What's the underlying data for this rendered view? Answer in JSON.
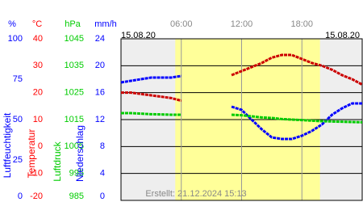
{
  "chart_data": {
    "type": "line",
    "date_left": "15.08.20",
    "date_right": "15.08.20",
    "footer": "Erstellt: 21.12.2024 15:13",
    "xlim": [
      0,
      24
    ],
    "xticks": [
      {
        "value": 6,
        "label": "06:00"
      },
      {
        "value": 12,
        "label": "12:00"
      },
      {
        "value": 18,
        "label": "18:00"
      }
    ],
    "daylight": [
      5.4,
      19.8
    ],
    "axes": [
      {
        "unit": "%",
        "title": "Luftfeuchtigkeit",
        "color": "#0000ff",
        "lim": [
          0,
          100
        ],
        "ticks": [
          0,
          25,
          50,
          75,
          100
        ]
      },
      {
        "unit": "°C",
        "title": "Temperatur",
        "color": "#ff0000",
        "lim": [
          -20,
          40
        ],
        "ticks": [
          -20,
          -10,
          0,
          10,
          20,
          30,
          40
        ]
      },
      {
        "unit": "hPa",
        "title": "Luftdruck",
        "color": "#00cc00",
        "lim": [
          985,
          1045
        ],
        "ticks": [
          985,
          995,
          1005,
          1015,
          1025,
          1035,
          1045
        ]
      },
      {
        "unit": "mm/h",
        "title": "Niederschlag",
        "color": "#0000ff",
        "lim": [
          0,
          24
        ],
        "ticks": [
          0,
          4,
          8,
          12,
          16,
          20,
          24
        ]
      }
    ],
    "x": [
      0,
      1,
      2,
      3,
      4,
      5,
      6,
      7,
      8,
      9,
      10,
      11,
      12,
      13,
      14,
      15,
      16,
      17,
      18,
      19,
      20,
      21,
      22,
      23,
      24
    ],
    "series": [
      {
        "name": "Luftfeuchtigkeit",
        "axis": 0,
        "color": "#0000ff",
        "values": [
          73,
          74,
          75,
          76,
          76,
          76,
          77,
          null,
          null,
          null,
          null,
          58,
          56,
          50,
          44,
          39,
          38,
          38,
          40,
          43,
          47,
          53,
          57,
          60,
          60
        ]
      },
      {
        "name": "Temperatur",
        "axis": 1,
        "color": "#cc0000",
        "values": [
          20,
          20,
          19.5,
          19,
          18.5,
          18,
          17,
          null,
          null,
          null,
          null,
          26.5,
          28,
          29.5,
          31,
          33,
          34,
          34,
          32.5,
          31,
          30,
          28.5,
          26.5,
          25,
          23
        ]
      },
      {
        "name": "Luftdruck",
        "axis": 2,
        "color": "#00cc00",
        "values": [
          1017.4,
          1017.4,
          1017.2,
          1017,
          1016.9,
          1016.8,
          1016.8,
          null,
          null,
          null,
          null,
          1016.8,
          1016.6,
          1016.2,
          1015.8,
          1015.6,
          1015.2,
          1015,
          1014.8,
          1014.6,
          1014.4,
          1014.3,
          1014.2,
          1014.1,
          1014
        ]
      }
    ]
  }
}
